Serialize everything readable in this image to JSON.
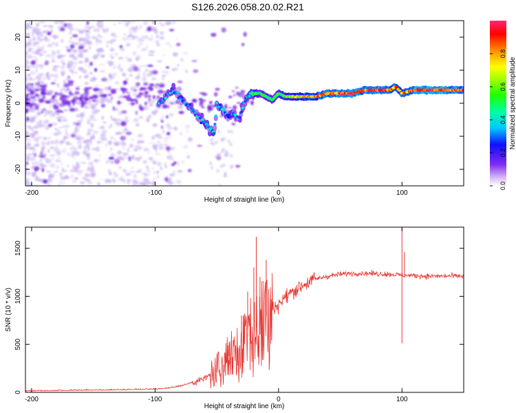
{
  "title": "S126.2026.058.20.02.R21",
  "colors": {
    "axis": "#000000",
    "snr_line": "#e8322d",
    "scatter_cloud": "#c9b3f2",
    "scatter_blob": "#7a2be0",
    "background": "#ffffff"
  },
  "chart_data": [
    {
      "type": "heatmap",
      "name": "spectrogram",
      "xlabel": "Height of straight line (km)",
      "ylabel": "Frequency (Hz)",
      "xlim": [
        -205,
        150
      ],
      "ylim": [
        -25,
        25
      ],
      "xticks": [
        -200,
        -100,
        0,
        100
      ],
      "yticks": [
        -20,
        -10,
        0,
        10,
        20
      ],
      "colorbar": {
        "label": "Normalized spectral amplitude",
        "range": [
          0,
          1
        ],
        "ticks": [
          0.0,
          0.2,
          0.4,
          0.6,
          0.8
        ],
        "tick_labels": [
          "0.0",
          "0.2",
          "0.4",
          "0.6",
          "0.8"
        ],
        "colormap": "hsv-rainbow"
      },
      "carrier_track": [
        [
          -95,
          0
        ],
        [
          -90,
          3
        ],
        [
          -85,
          4
        ],
        [
          -80,
          2
        ],
        [
          -75,
          0
        ],
        [
          -70,
          -2
        ],
        [
          -65,
          -4
        ],
        [
          -60,
          -6
        ],
        [
          -55,
          -8
        ],
        [
          -52,
          -9
        ],
        [
          -50,
          0
        ],
        [
          -45,
          -2
        ],
        [
          -40,
          -4
        ],
        [
          -36,
          -3
        ],
        [
          -32,
          -5
        ],
        [
          -28,
          0
        ],
        [
          -25,
          2
        ],
        [
          -20,
          3
        ],
        [
          -15,
          3
        ],
        [
          -10,
          2
        ],
        [
          -5,
          1
        ],
        [
          0,
          3
        ],
        [
          5,
          2
        ],
        [
          10,
          2
        ],
        [
          20,
          2
        ],
        [
          30,
          2
        ],
        [
          40,
          3
        ],
        [
          50,
          3
        ],
        [
          60,
          3
        ],
        [
          70,
          4
        ],
        [
          80,
          4
        ],
        [
          90,
          4
        ],
        [
          95,
          5
        ],
        [
          100,
          3
        ],
        [
          110,
          4
        ],
        [
          120,
          4
        ],
        [
          130,
          4
        ],
        [
          140,
          4
        ],
        [
          150,
          4
        ]
      ],
      "carrier_amplitude": [
        [
          -95,
          0.3
        ],
        [
          -80,
          0.25
        ],
        [
          -60,
          0.3
        ],
        [
          -50,
          0.35
        ],
        [
          -40,
          0.3
        ],
        [
          -30,
          0.3
        ],
        [
          -20,
          0.5
        ],
        [
          -10,
          0.45
        ],
        [
          0,
          0.5
        ],
        [
          20,
          0.75
        ],
        [
          40,
          0.85
        ],
        [
          60,
          0.9
        ],
        [
          80,
          0.88
        ],
        [
          100,
          0.8
        ],
        [
          120,
          0.95
        ],
        [
          150,
          0.85
        ]
      ]
    },
    {
      "type": "line",
      "name": "snr",
      "xlabel": "Height of straight line (km)",
      "ylabel": "SNR (10 * v/v)",
      "xlim": [
        -205,
        150
      ],
      "ylim": [
        0,
        1720
      ],
      "xticks": [
        -200,
        -100,
        0,
        100
      ],
      "yticks": [
        0,
        500,
        1000,
        1500
      ],
      "series": [
        {
          "name": "SNR",
          "x": [
            -205,
            -180,
            -150,
            -120,
            -100,
            -90,
            -80,
            -70,
            -60,
            -55,
            -50,
            -45,
            -40,
            -35,
            -30,
            -25,
            -20,
            -15,
            -10,
            -5,
            0,
            5,
            10,
            15,
            20,
            25,
            30,
            40,
            50,
            60,
            70,
            80,
            90,
            95,
            100,
            110,
            120,
            130,
            140,
            150
          ],
          "values": [
            10,
            15,
            20,
            25,
            30,
            40,
            60,
            100,
            140,
            190,
            240,
            300,
            380,
            450,
            520,
            580,
            640,
            720,
            800,
            860,
            920,
            980,
            1040,
            1080,
            1120,
            1150,
            1180,
            1210,
            1230,
            1240,
            1240,
            1235,
            1230,
            1225,
            1220,
            1215,
            1210,
            1210,
            1210,
            1210
          ]
        }
      ],
      "spikes": [
        [
          -18,
          1620
        ],
        [
          -10,
          1380
        ],
        [
          -20,
          1300
        ],
        [
          -15,
          1200
        ],
        [
          -25,
          1050
        ],
        [
          -30,
          800
        ],
        [
          -40,
          520
        ],
        [
          100,
          1720
        ],
        [
          100,
          510
        ],
        [
          102,
          1460
        ]
      ]
    }
  ]
}
